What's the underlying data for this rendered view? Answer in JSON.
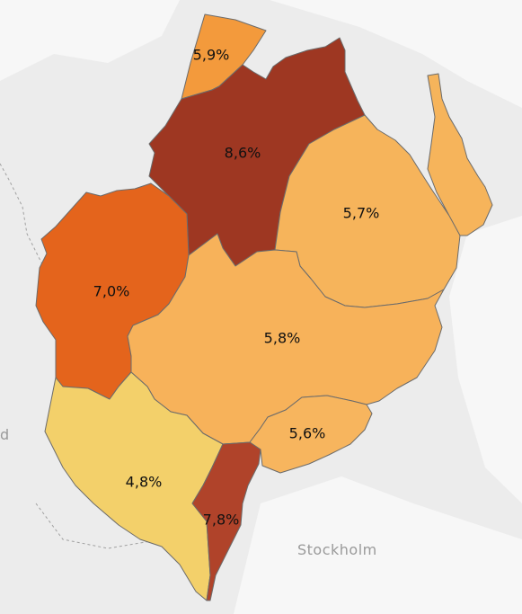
{
  "basemap": {
    "place_labels": [
      {
        "id": "stockholm",
        "text": "Stockholm"
      },
      {
        "id": "edge-label",
        "text": "d"
      }
    ]
  },
  "regions": [
    {
      "id": "north-strip",
      "label": "5,9%",
      "value": 5.9,
      "color": "#f39a3c"
    },
    {
      "id": "north-center",
      "label": "8,6%",
      "value": 8.6,
      "color": "#9e3722"
    },
    {
      "id": "north-east",
      "label": "5,7%",
      "value": 5.7,
      "color": "#f6b45b"
    },
    {
      "id": "west",
      "label": "7,0%",
      "value": 7.0,
      "color": "#e4641c"
    },
    {
      "id": "center",
      "label": "5,8%",
      "value": 5.8,
      "color": "#f7b25a"
    },
    {
      "id": "south-east-small",
      "label": "5,6%",
      "value": 5.6,
      "color": "#f7b55e"
    },
    {
      "id": "south-west",
      "label": "4,8%",
      "value": 4.8,
      "color": "#f3d06a"
    },
    {
      "id": "south-strip",
      "label": "7,8%",
      "value": 7.8,
      "color": "#b0432a"
    }
  ]
}
